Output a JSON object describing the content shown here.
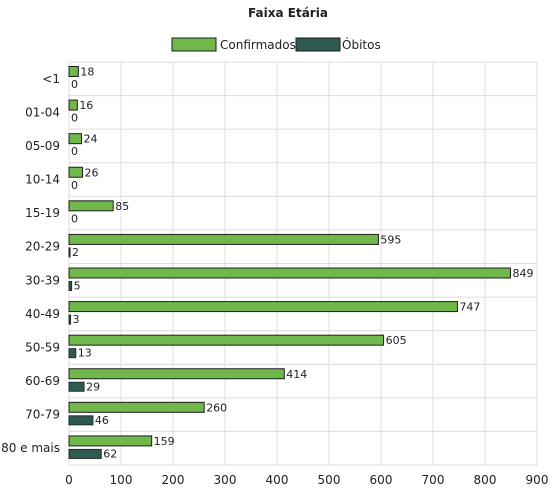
{
  "chart_data": {
    "type": "bar",
    "orientation": "horizontal",
    "title": "Faixa Etária",
    "categories": [
      "<1",
      "01-04",
      "05-09",
      "10-14",
      "15-19",
      "20-29",
      "30-39",
      "40-49",
      "50-59",
      "60-69",
      "70-79",
      "80 e mais"
    ],
    "series": [
      {
        "name": "Confirmados",
        "color": "#70b84a",
        "values": [
          18,
          16,
          24,
          26,
          85,
          595,
          849,
          747,
          605,
          414,
          260,
          159
        ]
      },
      {
        "name": "Óbitos",
        "color": "#2f5a52",
        "values": [
          0,
          0,
          0,
          0,
          0,
          2,
          5,
          3,
          13,
          29,
          46,
          62
        ]
      }
    ],
    "xlim": [
      0,
      900
    ],
    "xticks": [
      0,
      100,
      200,
      300,
      400,
      500,
      600,
      700,
      800,
      900
    ],
    "grid": true,
    "legend": "top-center"
  }
}
